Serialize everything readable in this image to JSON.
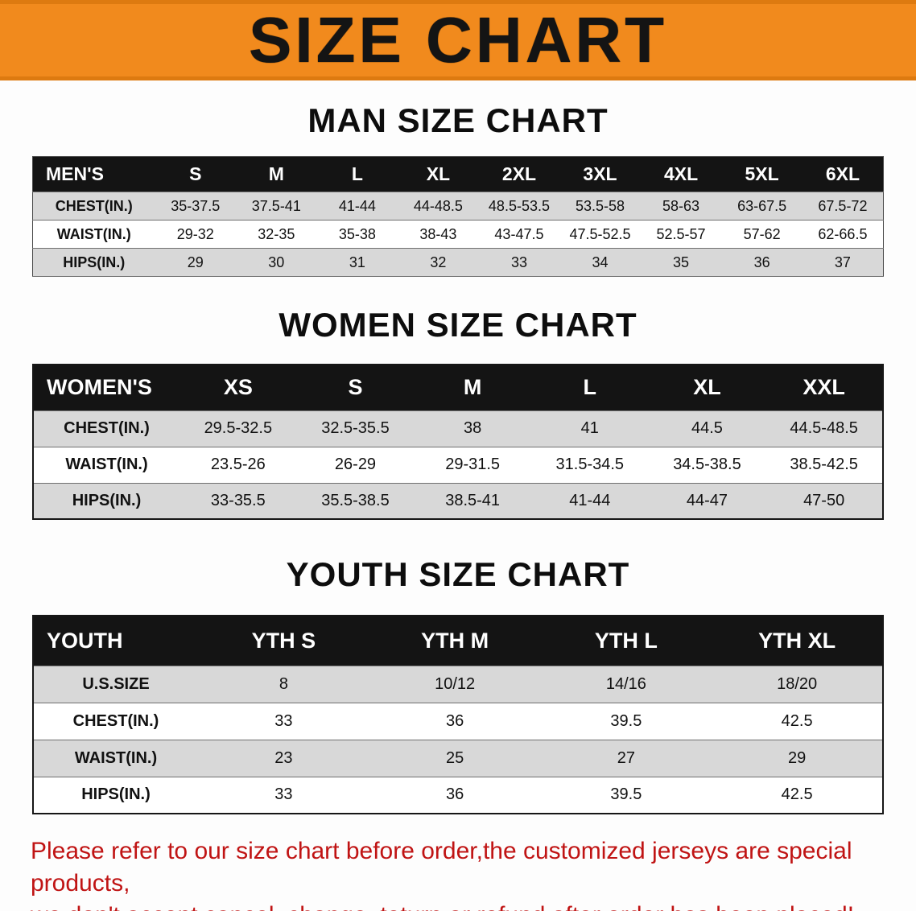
{
  "banner": {
    "title": "SIZE CHART"
  },
  "colors": {
    "banner_orange": "#f18a1d",
    "banner_orange_edge": "#dd7a10",
    "table_header_black": "#141414",
    "row_stripe_gray": "#d8d8d8",
    "notice_red": "#c01414"
  },
  "sections": [
    {
      "title": "MAN SIZE CHART",
      "table": {
        "header": [
          "MEN'S",
          "S",
          "M",
          "L",
          "XL",
          "2XL",
          "3XL",
          "4XL",
          "5XL",
          "6XL"
        ],
        "rows": [
          {
            "label": "CHEST(IN.)",
            "values": [
              "35-37.5",
              "37.5-41",
              "41-44",
              "44-48.5",
              "48.5-53.5",
              "53.5-58",
              "58-63",
              "63-67.5",
              "67.5-72"
            ]
          },
          {
            "label": "WAIST(IN.)",
            "values": [
              "29-32",
              "32-35",
              "35-38",
              "38-43",
              "43-47.5",
              "47.5-52.5",
              "52.5-57",
              "57-62",
              "62-66.5"
            ]
          },
          {
            "label": "HIPS(IN.)",
            "values": [
              "29",
              "30",
              "31",
              "32",
              "33",
              "34",
              "35",
              "36",
              "37"
            ]
          }
        ]
      }
    },
    {
      "title": "WOMEN SIZE CHART",
      "table": {
        "header": [
          "WOMEN'S",
          "XS",
          "S",
          "M",
          "L",
          "XL",
          "XXL"
        ],
        "rows": [
          {
            "label": "CHEST(IN.)",
            "values": [
              "29.5-32.5",
              "32.5-35.5",
              "38",
              "41",
              "44.5",
              "44.5-48.5"
            ]
          },
          {
            "label": "WAIST(IN.)",
            "values": [
              "23.5-26",
              "26-29",
              "29-31.5",
              "31.5-34.5",
              "34.5-38.5",
              "38.5-42.5"
            ]
          },
          {
            "label": "HIPS(IN.)",
            "values": [
              "33-35.5",
              "35.5-38.5",
              "38.5-41",
              "41-44",
              "44-47",
              "47-50"
            ]
          }
        ]
      }
    },
    {
      "title": "YOUTH SIZE CHART",
      "table": {
        "header": [
          "YOUTH",
          "YTH S",
          "YTH M",
          "YTH L",
          "YTH XL"
        ],
        "rows": [
          {
            "label": "U.S.SIZE",
            "values": [
              "8",
              "10/12",
              "14/16",
              "18/20"
            ]
          },
          {
            "label": "CHEST(IN.)",
            "values": [
              "33",
              "36",
              "39.5",
              "42.5"
            ]
          },
          {
            "label": "WAIST(IN.)",
            "values": [
              "23",
              "25",
              "27",
              "29"
            ]
          },
          {
            "label": "HIPS(IN.)",
            "values": [
              "33",
              "36",
              "39.5",
              "42.5"
            ]
          }
        ]
      }
    }
  ],
  "footer": {
    "line1": "Please refer to our size chart before order,the customized jerseys are special products,",
    "line2": "we don't accept cancel, change, teturn or refund after order has been placed!"
  }
}
